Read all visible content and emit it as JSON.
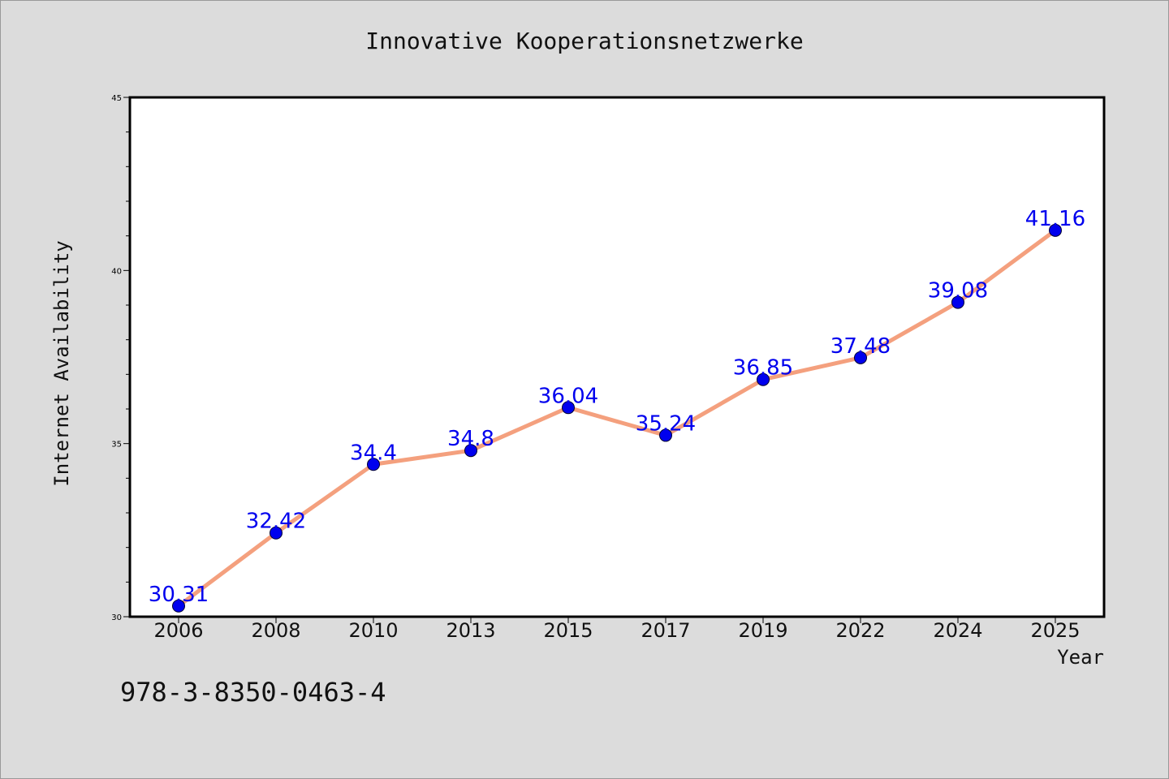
{
  "chart_data": {
    "type": "line",
    "title": "Innovative Kooperationsnetzwerke",
    "xlabel": "Year",
    "ylabel": "Internet Availability",
    "categories": [
      "2006",
      "2008",
      "2010",
      "2013",
      "2015",
      "2017",
      "2019",
      "2022",
      "2024",
      "2025"
    ],
    "values": [
      30.31,
      32.42,
      34.4,
      34.8,
      36.04,
      35.24,
      36.85,
      37.48,
      39.08,
      41.16
    ],
    "data_labels": [
      "30.31",
      "32.42",
      "34.4",
      "34.8",
      "36.04",
      "35.24",
      "36.85",
      "37.48",
      "39.08",
      "41.16"
    ],
    "ylim": [
      30,
      45
    ],
    "yticks": [
      30,
      35,
      40,
      45
    ],
    "grid": false,
    "line_color": "#f4a07e",
    "marker_color": "#0000ee",
    "label_color": "#0000ee"
  },
  "footer": {
    "isbn": "978-3-8350-0463-4"
  }
}
